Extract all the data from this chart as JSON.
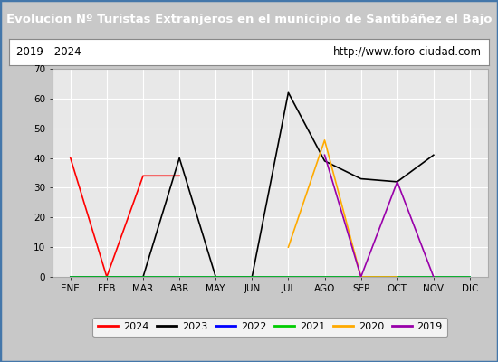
{
  "title": "Evolucion Nº Turistas Extranjeros en el municipio de Santibáñez el Bajo",
  "subtitle_left": "2019 - 2024",
  "subtitle_right": "http://www.foro-ciudad.com",
  "months": [
    "ENE",
    "FEB",
    "MAR",
    "ABR",
    "MAY",
    "JUN",
    "JUL",
    "AGO",
    "SEP",
    "OCT",
    "NOV",
    "DIC"
  ],
  "series": {
    "2024": {
      "color": "#ff0000",
      "data": [
        40,
        0,
        34,
        34,
        null,
        null,
        null,
        null,
        null,
        null,
        null,
        null
      ]
    },
    "2023": {
      "color": "#000000",
      "data": [
        0,
        0,
        0,
        40,
        0,
        0,
        62,
        39,
        33,
        32,
        41,
        null
      ]
    },
    "2022": {
      "color": "#0000ff",
      "data": [
        0,
        0,
        0,
        0,
        0,
        0,
        0,
        0,
        0,
        0,
        0,
        0
      ]
    },
    "2021": {
      "color": "#00cc00",
      "data": [
        0,
        0,
        0,
        0,
        0,
        0,
        0,
        0,
        0,
        0,
        0,
        0
      ]
    },
    "2020": {
      "color": "#ffaa00",
      "data": [
        null,
        null,
        null,
        null,
        null,
        null,
        10,
        46,
        0,
        0,
        null,
        null
      ]
    },
    "2019": {
      "color": "#9900aa",
      "data": [
        null,
        null,
        null,
        null,
        null,
        null,
        null,
        41,
        0,
        32,
        0,
        null
      ]
    }
  },
  "ylim": [
    0,
    70
  ],
  "yticks": [
    0,
    10,
    20,
    30,
    40,
    50,
    60,
    70
  ],
  "title_bg": "#4477aa",
  "title_color": "#ffffff",
  "subtitle_bg": "#ffffff",
  "subtitle_color": "#000000",
  "plot_bg": "#e8e8e8",
  "fig_bg": "#c8c8c8",
  "border_color": "#4477aa",
  "legend_order": [
    "2024",
    "2023",
    "2022",
    "2021",
    "2020",
    "2019"
  ]
}
